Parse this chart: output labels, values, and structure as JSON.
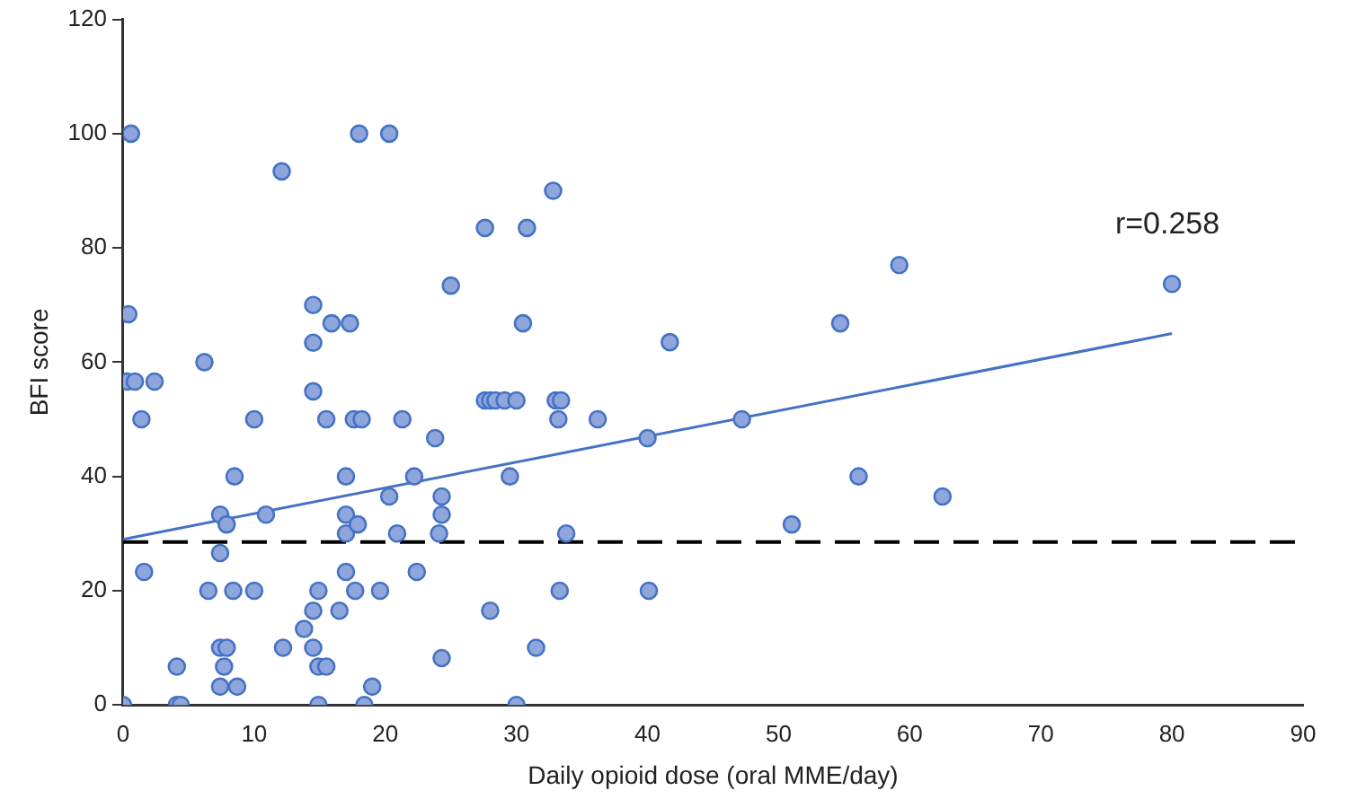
{
  "chart_data": {
    "type": "scatter",
    "xlabel": "Daily opioid dose (oral MME/day)",
    "ylabel": "BFI score",
    "xlim": [
      0,
      90
    ],
    "xticks": [
      0,
      10,
      20,
      30,
      40,
      50,
      60,
      70,
      80,
      90
    ],
    "ylim": [
      0,
      120
    ],
    "yticks": [
      0,
      20,
      40,
      60,
      80,
      100,
      120
    ],
    "grid": false,
    "legend": false,
    "marker": "circle",
    "series": [
      {
        "color": "#8ea6dc",
        "x": [
          0,
          0.4,
          0.6,
          0.3,
          0.9,
          2.4,
          1.4,
          1.6,
          4.1,
          4.1,
          4.4,
          6.2,
          6.5,
          7.4,
          7.4,
          7.4,
          7.9,
          7.7,
          7.4,
          7.9,
          8.5,
          8.4,
          8.7,
          10,
          10,
          10.9,
          12.1,
          12.2,
          13.8,
          14.5,
          14.5,
          14.5,
          14.5,
          14.5,
          14.9,
          14.9,
          15.5,
          14.9,
          15.5,
          15.9,
          16.5,
          17.3,
          17,
          17,
          17,
          17,
          17.7,
          17.9,
          17.6,
          18.2,
          18,
          18.4,
          19,
          19.6,
          20.3,
          20.3,
          20.9,
          21.3,
          22.2,
          22.4,
          23.8,
          24.1,
          24.3,
          24.3,
          24.3,
          25,
          27.6,
          27.6,
          28,
          28.4,
          29.1,
          30,
          28,
          29.5,
          30.5,
          30.8,
          30,
          31.5,
          32.8,
          33,
          33.4,
          33.2,
          33.3,
          33.8,
          36.2,
          40,
          40.1,
          41.7,
          47.2,
          51,
          54.7,
          56.1,
          59.2,
          62.5,
          80
        ],
        "values": [
          0,
          68.4,
          100,
          56.6,
          56.6,
          56.6,
          50,
          23.3,
          6.7,
          0,
          0,
          60,
          20,
          33.3,
          26.6,
          10,
          10,
          6.7,
          3.2,
          31.6,
          40,
          20,
          3.2,
          50,
          20,
          33.3,
          93.4,
          10,
          13.3,
          70,
          63.4,
          54.9,
          16.5,
          10,
          20,
          6.7,
          6.7,
          0,
          50,
          66.8,
          16.5,
          66.8,
          40,
          33.3,
          30,
          23.3,
          20,
          31.6,
          50,
          50,
          100,
          0,
          3.2,
          20,
          100,
          36.5,
          30,
          50,
          40,
          23.3,
          46.7,
          30,
          36.5,
          33.3,
          8.2,
          73.4,
          83.5,
          53.3,
          53.3,
          53.3,
          53.3,
          53.3,
          16.5,
          40,
          66.8,
          83.5,
          0,
          10,
          90,
          53.3,
          53.3,
          50,
          20,
          30,
          50,
          46.7,
          20,
          63.5,
          50,
          31.6,
          66.8,
          40,
          77,
          36.5,
          73.7
        ]
      },
      {
        "type": "line",
        "color": "#4472c4",
        "marker": "none",
        "line_style": "solid",
        "x": [
          0,
          80
        ],
        "values": [
          29,
          65
        ]
      }
    ],
    "ref_lines": [
      {
        "axis": "y",
        "value": 28.5,
        "color": "#000000",
        "line_style": "dashed"
      }
    ],
    "annotations": [
      "r=0.258"
    ]
  }
}
